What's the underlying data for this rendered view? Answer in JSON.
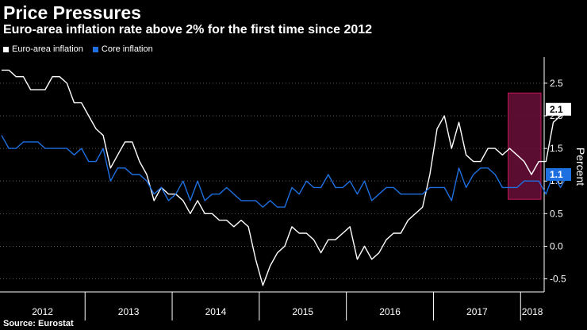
{
  "title": "Price Pressures",
  "subtitle": "Euro-area inflation rate above 2% for the first time since 2012",
  "source": "Source: Eurostat",
  "colors": {
    "background": "#000000",
    "headline": "#ffffff",
    "core": "#1e6fe0",
    "highlight": "#6b0f3a",
    "highlight_border": "#c2185b",
    "grid": "#555555"
  },
  "chart_data": {
    "type": "line",
    "ylabel": "Percent",
    "ylim": [
      -0.7,
      2.9
    ],
    "yticks": [
      -0.5,
      0.0,
      0.5,
      1.0,
      1.5,
      2.0,
      2.5
    ],
    "ytick_labels": [
      "-0.5",
      "0.0",
      "0.5",
      "1.0",
      "1.5",
      "2.0",
      "2.5"
    ],
    "x_start": "2012-01",
    "x_end": "2018-02",
    "year_labels": [
      "2012",
      "2013",
      "2014",
      "2015",
      "2016",
      "2017",
      "2018"
    ],
    "grid": true,
    "legend_position": "top-left",
    "series": [
      {
        "name": "Euro-area inflation",
        "color": "#ffffff",
        "end_label": "2.1",
        "values": [
          2.7,
          2.7,
          2.6,
          2.6,
          2.4,
          2.4,
          2.4,
          2.6,
          2.6,
          2.5,
          2.2,
          2.2,
          2.0,
          1.8,
          1.7,
          1.2,
          1.4,
          1.6,
          1.6,
          1.3,
          1.1,
          0.7,
          0.9,
          0.8,
          0.8,
          0.7,
          0.5,
          0.7,
          0.5,
          0.5,
          0.4,
          0.4,
          0.3,
          0.4,
          0.3,
          -0.2,
          -0.6,
          -0.3,
          -0.1,
          0.0,
          0.3,
          0.2,
          0.2,
          0.1,
          -0.1,
          0.1,
          0.1,
          0.2,
          0.3,
          -0.2,
          0.0,
          -0.2,
          -0.1,
          0.1,
          0.2,
          0.2,
          0.4,
          0.5,
          0.6,
          1.1,
          1.8,
          2.0,
          1.5,
          1.9,
          1.4,
          1.3,
          1.3,
          1.5,
          1.5,
          1.4,
          1.5,
          1.4,
          1.3,
          1.1,
          1.3,
          1.3,
          1.9,
          2.0,
          2.1
        ]
      },
      {
        "name": "Core inflation",
        "color": "#1e6fe0",
        "end_label": "1.1",
        "values": [
          1.7,
          1.5,
          1.5,
          1.6,
          1.6,
          1.6,
          1.5,
          1.5,
          1.5,
          1.5,
          1.4,
          1.5,
          1.3,
          1.3,
          1.5,
          1.0,
          1.2,
          1.2,
          1.1,
          1.1,
          1.0,
          0.8,
          0.9,
          0.7,
          0.8,
          1.0,
          0.7,
          1.0,
          0.7,
          0.8,
          0.8,
          0.9,
          0.8,
          0.7,
          0.7,
          0.7,
          0.6,
          0.7,
          0.6,
          0.6,
          0.9,
          0.8,
          1.0,
          0.9,
          0.9,
          1.1,
          0.9,
          0.9,
          1.0,
          0.8,
          1.0,
          0.7,
          0.8,
          0.9,
          0.9,
          0.8,
          0.8,
          0.8,
          0.8,
          0.9,
          0.9,
          0.9,
          0.7,
          1.2,
          0.9,
          1.1,
          1.2,
          1.2,
          1.1,
          0.9,
          0.9,
          0.9,
          1.0,
          1.0,
          1.0,
          0.8,
          1.1,
          0.9,
          1.1
        ]
      }
    ]
  }
}
